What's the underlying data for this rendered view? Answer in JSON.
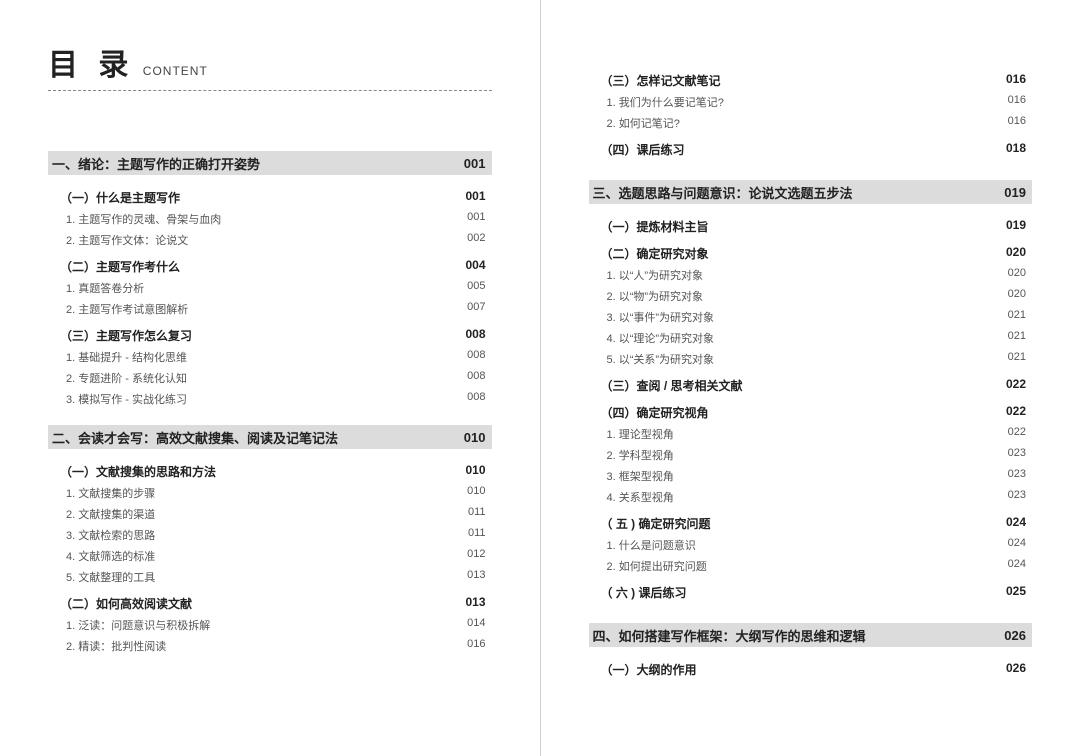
{
  "header": {
    "main": "目 录",
    "sub": "CONTENT"
  },
  "colors": {
    "chapter_bg": "#dcdcdc",
    "text_primary": "#222222",
    "text_secondary": "#555555",
    "divider": "#d0d0d0",
    "dash": "#888888",
    "background": "#ffffff"
  },
  "typography": {
    "title_fontsize": 30,
    "chapter_fontsize": 13,
    "section_fontsize": 12,
    "item_fontsize": 11
  },
  "leftPage": [
    {
      "type": "chapter",
      "title": "一、绪论：主题写作的正确打开姿势",
      "page": "001"
    },
    {
      "type": "section",
      "title": "（一）什么是主题写作",
      "page": "001"
    },
    {
      "type": "item",
      "title": "1. 主题写作的灵魂、骨架与血肉",
      "page": "001"
    },
    {
      "type": "item",
      "title": "2. 主题写作文体：论说文",
      "page": "002"
    },
    {
      "type": "section",
      "title": "（二）主题写作考什么",
      "page": "004"
    },
    {
      "type": "item",
      "title": "1. 真题答卷分析",
      "page": "005"
    },
    {
      "type": "item",
      "title": "2. 主题写作考试意图解析",
      "page": "007"
    },
    {
      "type": "section",
      "title": "（三）主题写作怎么复习",
      "page": "008"
    },
    {
      "type": "item",
      "title": "1. 基础提升 - 结构化思维",
      "page": "008"
    },
    {
      "type": "item",
      "title": "2. 专题进阶 - 系统化认知",
      "page": "008"
    },
    {
      "type": "item",
      "title": "3. 模拟写作 - 实战化练习",
      "page": "008"
    },
    {
      "type": "gap"
    },
    {
      "type": "chapter",
      "title": "二、会读才会写：高效文献搜集、阅读及记笔记法",
      "page": "010"
    },
    {
      "type": "section",
      "title": "（一）文献搜集的思路和方法",
      "page": "010"
    },
    {
      "type": "item",
      "title": "1. 文献搜集的步骤",
      "page": "010"
    },
    {
      "type": "item",
      "title": "2. 文献搜集的渠道",
      "page": "011"
    },
    {
      "type": "item",
      "title": "3. 文献检索的思路",
      "page": "011"
    },
    {
      "type": "item",
      "title": "4. 文献筛选的标准",
      "page": "012"
    },
    {
      "type": "item",
      "title": "5. 文献整理的工具",
      "page": "013"
    },
    {
      "type": "section",
      "title": "（二）如何高效阅读文献",
      "page": "013"
    },
    {
      "type": "item",
      "title": "1. 泛读：问题意识与积极拆解",
      "page": "014"
    },
    {
      "type": "item",
      "title": "2. 精读：批判性阅读",
      "page": "016"
    }
  ],
  "rightPage": [
    {
      "type": "section",
      "title": "（三）怎样记文献笔记",
      "page": "016"
    },
    {
      "type": "item",
      "title": "1. 我们为什么要记笔记?",
      "page": "016"
    },
    {
      "type": "item",
      "title": "2. 如何记笔记?",
      "page": "016"
    },
    {
      "type": "section",
      "title": "（四）课后练习",
      "page": "018"
    },
    {
      "type": "gap"
    },
    {
      "type": "chapter",
      "title": "三、选题思路与问题意识：论说文选题五步法",
      "page": "019"
    },
    {
      "type": "section",
      "title": "（一）提炼材料主旨",
      "page": "019"
    },
    {
      "type": "section",
      "title": "（二）确定研究对象",
      "page": "020"
    },
    {
      "type": "item",
      "title": "1. 以“人”为研究对象",
      "page": "020"
    },
    {
      "type": "item",
      "title": "2. 以“物”为研究对象",
      "page": "020"
    },
    {
      "type": "item",
      "title": "3. 以“事件”为研究对象",
      "page": "021"
    },
    {
      "type": "item",
      "title": "4. 以“理论”为研究对象",
      "page": "021"
    },
    {
      "type": "item",
      "title": "5. 以“关系”为研究对象",
      "page": "021"
    },
    {
      "type": "section",
      "title": "（三）查阅 / 思考相关文献",
      "page": "022"
    },
    {
      "type": "section",
      "title": "（四）确定研究视角",
      "page": "022"
    },
    {
      "type": "item",
      "title": "1. 理论型视角",
      "page": "022"
    },
    {
      "type": "item",
      "title": "2. 学科型视角",
      "page": "023"
    },
    {
      "type": "item",
      "title": "3. 框架型视角",
      "page": "023"
    },
    {
      "type": "item",
      "title": "4. 关系型视角",
      "page": "023"
    },
    {
      "type": "section",
      "title": "（ 五 ) 确定研究问题",
      "page": "024"
    },
    {
      "type": "item",
      "title": "1. 什么是问题意识",
      "page": "024"
    },
    {
      "type": "item",
      "title": "2. 如何提出研究问题",
      "page": "024"
    },
    {
      "type": "section",
      "title": "（ 六 ) 课后练习",
      "page": "025"
    },
    {
      "type": "gap"
    },
    {
      "type": "chapter",
      "title": "四、如何搭建写作框架：大纲写作的思维和逻辑",
      "page": "026"
    },
    {
      "type": "section",
      "title": "（一）大纲的作用",
      "page": "026"
    }
  ]
}
